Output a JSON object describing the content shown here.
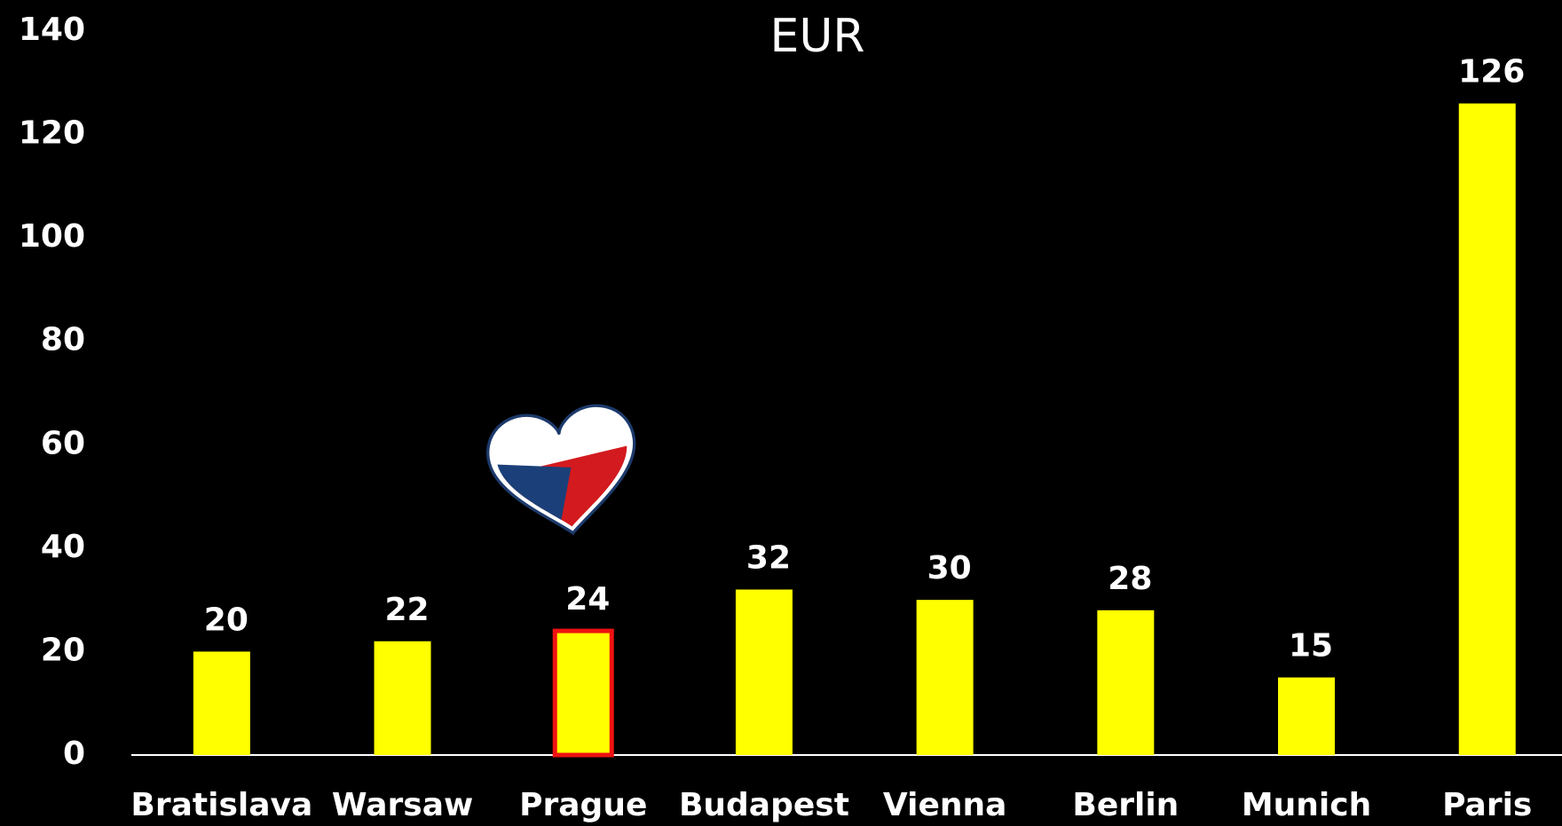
{
  "chart_data": {
    "type": "bar",
    "title": "EUR",
    "categories": [
      "Bratislava",
      "Warsaw",
      "Prague",
      "Budapest",
      "Vienna",
      "Berlin",
      "Munich",
      "Paris"
    ],
    "values": [
      20,
      22,
      24,
      32,
      30,
      28,
      15,
      126
    ],
    "color": "#ffff00",
    "highlight": "Prague",
    "highlight_color": "#ee1111",
    "ylim": [
      0,
      140
    ],
    "yticks": [
      0,
      20,
      40,
      60,
      80,
      100,
      120,
      140
    ],
    "grid": false
  }
}
